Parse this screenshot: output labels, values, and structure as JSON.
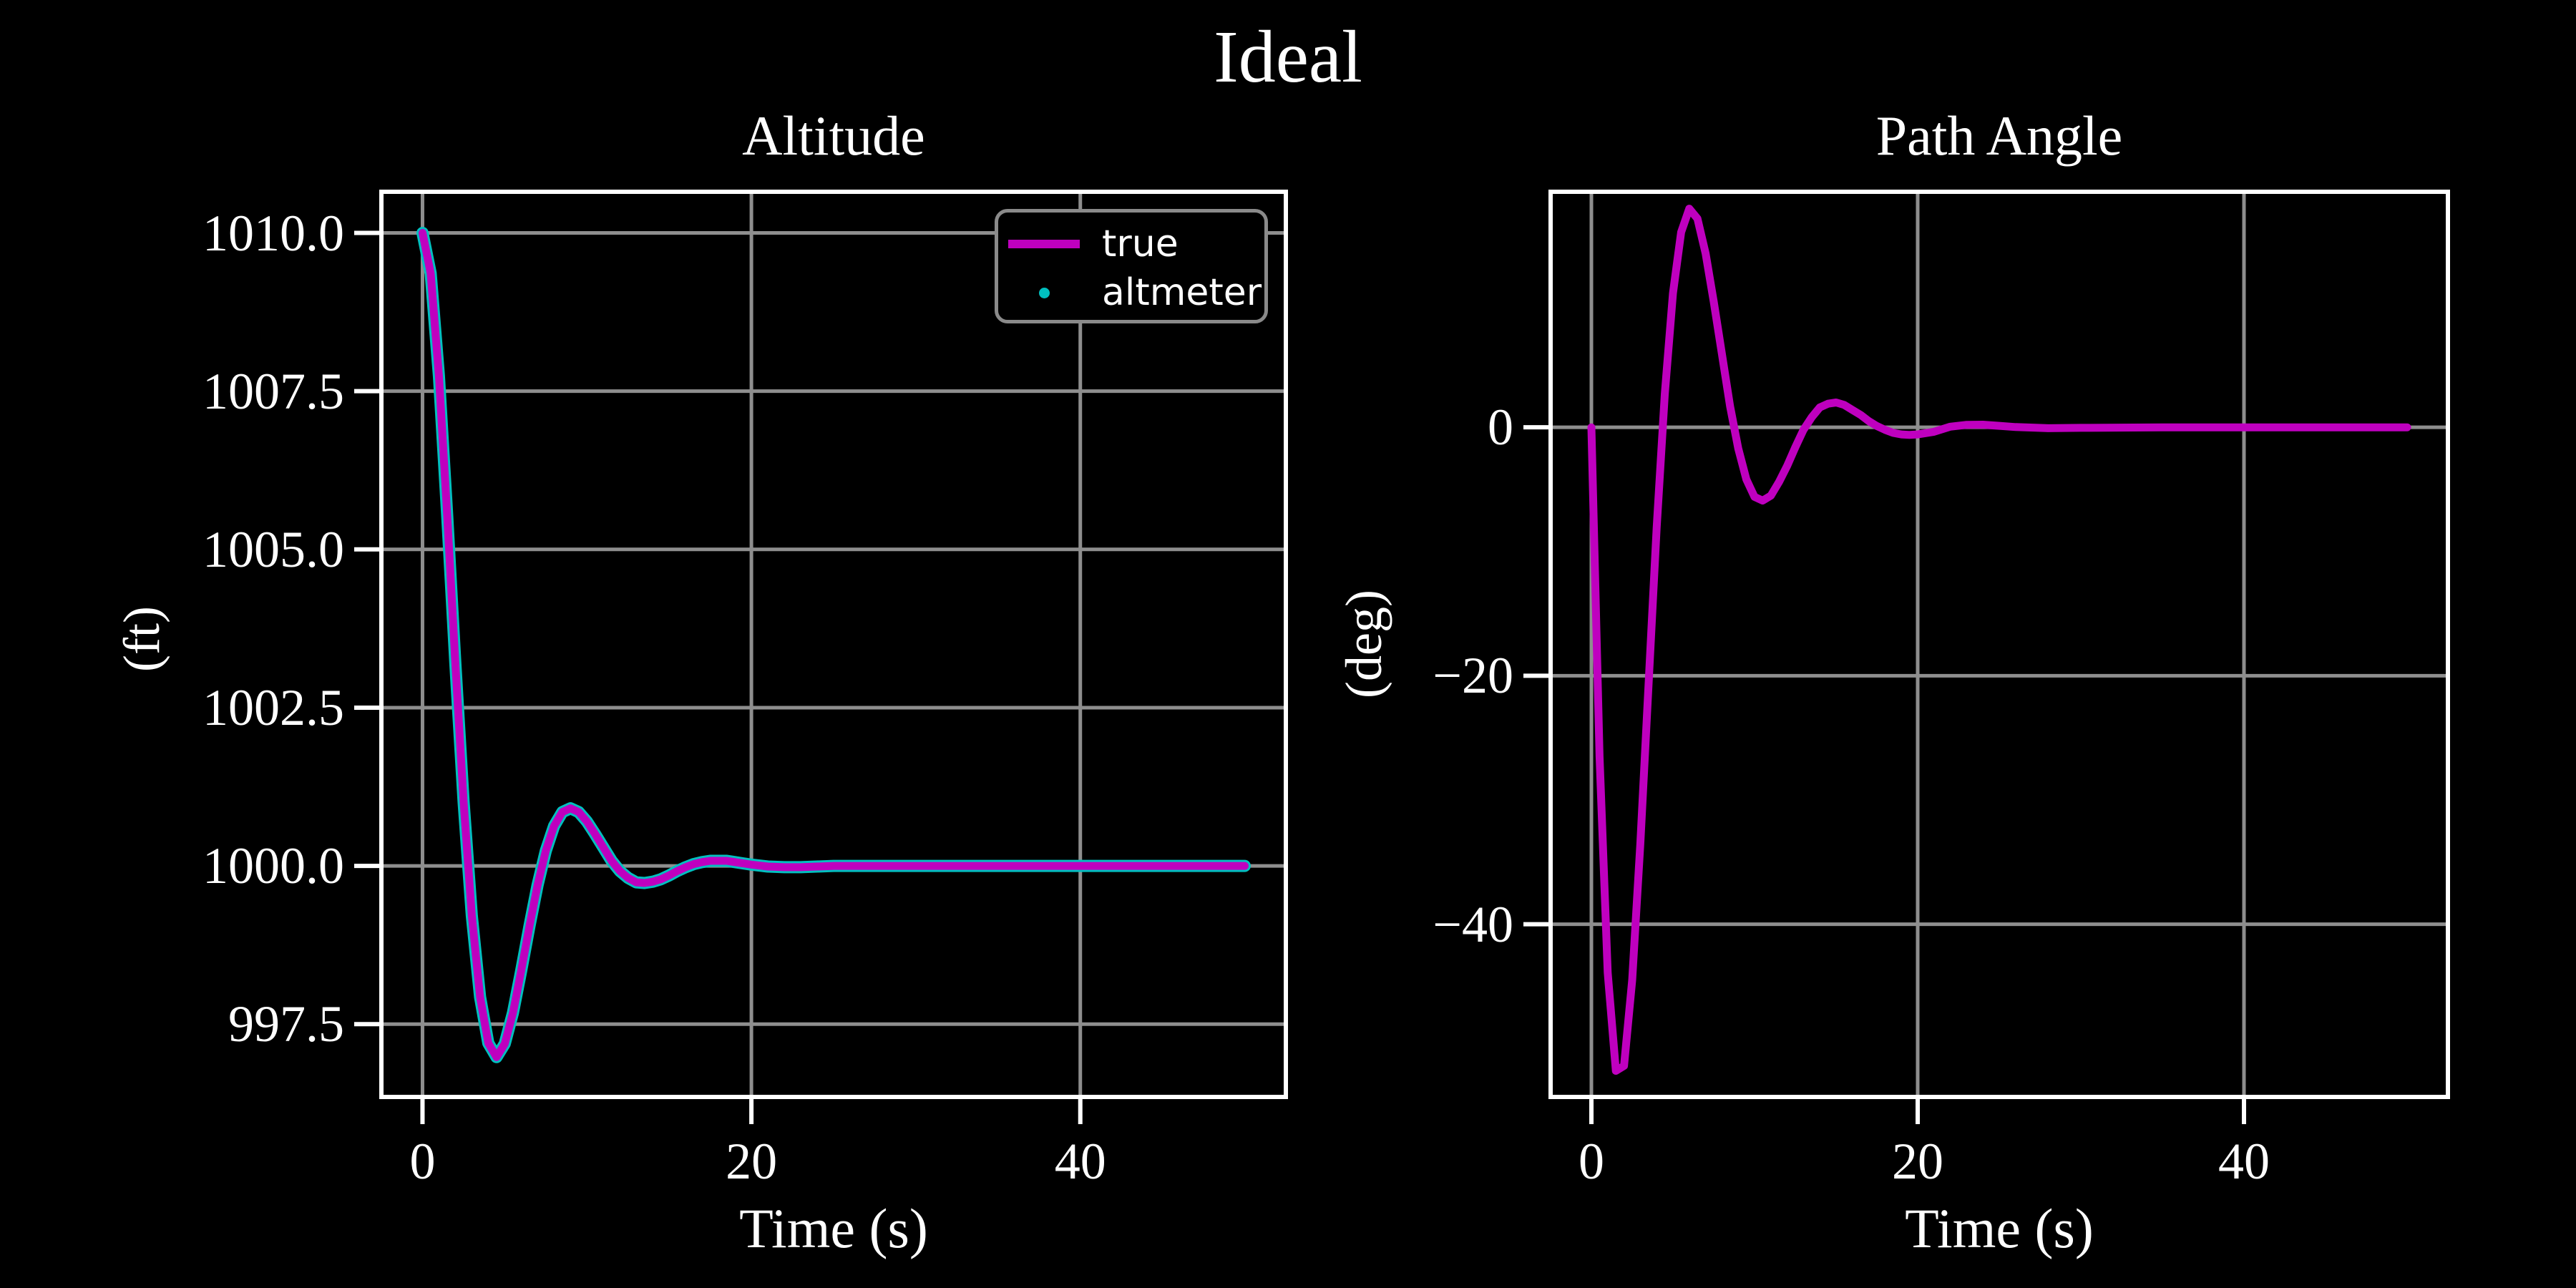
{
  "figure": {
    "title": "Ideal",
    "background": "#000000",
    "text_color": "#ffffff",
    "grid_color": "#8e8e8e",
    "spine_color": "#ffffff",
    "tick_color": "#ffffff",
    "legend_border_color": "#8a8a8a"
  },
  "chart_data": [
    {
      "type": "line",
      "title": "Altitude",
      "xlabel": "Time (s)",
      "ylabel": "(ft)",
      "xlim": [
        -2.5,
        52.5
      ],
      "ylim": [
        996.35,
        1010.65
      ],
      "xticks": [
        0,
        20,
        40
      ],
      "xtick_labels": [
        "0",
        "20",
        "40"
      ],
      "yticks": [
        1010.0,
        1007.5,
        1005.0,
        1002.5,
        1000.0,
        997.5
      ],
      "ytick_labels": [
        "1010.0",
        "1007.5",
        "1005.0",
        "1002.5",
        "1000.0",
        "997.5"
      ],
      "grid": true,
      "legend": {
        "position": "upper right",
        "entries": [
          {
            "label": "true",
            "color": "#BF00BF",
            "type": "line"
          },
          {
            "label": "altmeter",
            "color": "#00BFBF",
            "type": "dot"
          }
        ]
      },
      "series": [
        {
          "name": "altmeter",
          "style": "scatter",
          "color": "#00BFBF",
          "line_width": 17,
          "x": [
            0,
            0.5,
            1,
            1.5,
            2,
            2.5,
            3,
            3.5,
            4,
            4.5,
            5,
            5.5,
            6,
            6.5,
            7,
            7.5,
            8,
            8.5,
            9,
            9.5,
            10,
            10.5,
            11,
            11.5,
            12,
            12.5,
            13,
            13.5,
            14,
            14.5,
            15,
            15.5,
            16,
            16.5,
            17,
            17.5,
            18,
            18.5,
            19,
            19.5,
            20,
            21,
            22,
            23,
            24,
            25,
            26,
            28,
            30,
            35,
            40,
            45,
            50
          ],
          "y": [
            1010.0,
            1009.36,
            1007.74,
            1005.55,
            1003.19,
            1001.01,
            999.21,
            997.93,
            997.2,
            996.98,
            997.19,
            997.68,
            998.34,
            999.04,
            999.7,
            1000.24,
            1000.63,
            1000.85,
            1000.91,
            1000.85,
            1000.7,
            1000.5,
            1000.29,
            1000.08,
            999.92,
            999.81,
            999.74,
            999.73,
            999.75,
            999.79,
            999.85,
            999.92,
            999.98,
            1000.03,
            1000.06,
            1000.08,
            1000.08,
            1000.08,
            1000.06,
            1000.04,
            1000.02,
            999.99,
            999.98,
            999.98,
            999.99,
            1000.0,
            1000.0,
            1000.0,
            1000.0,
            1000.0,
            1000.0,
            1000.0,
            1000.0
          ]
        },
        {
          "name": "true",
          "style": "line",
          "color": "#BF00BF",
          "line_width": 11,
          "x": [
            0,
            0.5,
            1,
            1.5,
            2,
            2.5,
            3,
            3.5,
            4,
            4.5,
            5,
            5.5,
            6,
            6.5,
            7,
            7.5,
            8,
            8.5,
            9,
            9.5,
            10,
            10.5,
            11,
            11.5,
            12,
            12.5,
            13,
            13.5,
            14,
            14.5,
            15,
            15.5,
            16,
            16.5,
            17,
            17.5,
            18,
            18.5,
            19,
            19.5,
            20,
            21,
            22,
            23,
            24,
            25,
            26,
            28,
            30,
            35,
            40,
            45,
            50
          ],
          "y": [
            1010.0,
            1009.36,
            1007.74,
            1005.55,
            1003.19,
            1001.01,
            999.21,
            997.93,
            997.2,
            996.98,
            997.19,
            997.68,
            998.34,
            999.04,
            999.7,
            1000.24,
            1000.63,
            1000.85,
            1000.91,
            1000.85,
            1000.7,
            1000.5,
            1000.29,
            1000.08,
            999.92,
            999.81,
            999.74,
            999.73,
            999.75,
            999.79,
            999.85,
            999.92,
            999.98,
            1000.03,
            1000.06,
            1000.08,
            1000.08,
            1000.08,
            1000.06,
            1000.04,
            1000.02,
            999.99,
            999.98,
            999.98,
            999.99,
            1000.0,
            1000.0,
            1000.0,
            1000.0,
            1000.0,
            1000.0,
            1000.0,
            1000.0
          ]
        }
      ]
    },
    {
      "type": "line",
      "title": "Path Angle",
      "xlabel": "Time (s)",
      "ylabel": "(deg)",
      "xlim": [
        -2.5,
        52.5
      ],
      "ylim": [
        -53.9,
        18.96
      ],
      "xticks": [
        0,
        20,
        40
      ],
      "xtick_labels": [
        "0",
        "20",
        "40"
      ],
      "yticks": [
        0,
        -20,
        -40
      ],
      "ytick_labels": [
        "0",
        "−20",
        "−40"
      ],
      "grid": true,
      "series": [
        {
          "name": "true",
          "style": "line",
          "color": "#BF00BF",
          "line_width": 11,
          "x": [
            0,
            0.5,
            1,
            1.5,
            2,
            2.5,
            3,
            3.5,
            4,
            4.5,
            5,
            5.5,
            6,
            6.5,
            7,
            7.5,
            8,
            8.5,
            9,
            9.5,
            10,
            10.5,
            11,
            11.5,
            12,
            12.5,
            13,
            13.5,
            14,
            14.5,
            15,
            15.5,
            16,
            16.5,
            17,
            17.5,
            18,
            18.5,
            19,
            19.5,
            20,
            21,
            22,
            23,
            24,
            25,
            26,
            28,
            30,
            35,
            40,
            45,
            50
          ],
          "y": [
            0,
            -26.5,
            -43.9,
            -51.8,
            -51.4,
            -44.5,
            -33.5,
            -20.8,
            -8.1,
            2.7,
            10.8,
            15.7,
            17.6,
            16.8,
            14.0,
            10.1,
            5.9,
            1.7,
            -1.7,
            -4.2,
            -5.6,
            -5.9,
            -5.5,
            -4.4,
            -3.1,
            -1.6,
            -0.2,
            0.8,
            1.6,
            1.9,
            2.0,
            1.8,
            1.4,
            1.0,
            0.5,
            0.1,
            -0.2,
            -0.45,
            -0.57,
            -0.61,
            -0.57,
            -0.36,
            0.05,
            0.2,
            0.21,
            0.12,
            0.02,
            -0.07,
            -0.04,
            0,
            0,
            0,
            0
          ]
        }
      ]
    }
  ]
}
